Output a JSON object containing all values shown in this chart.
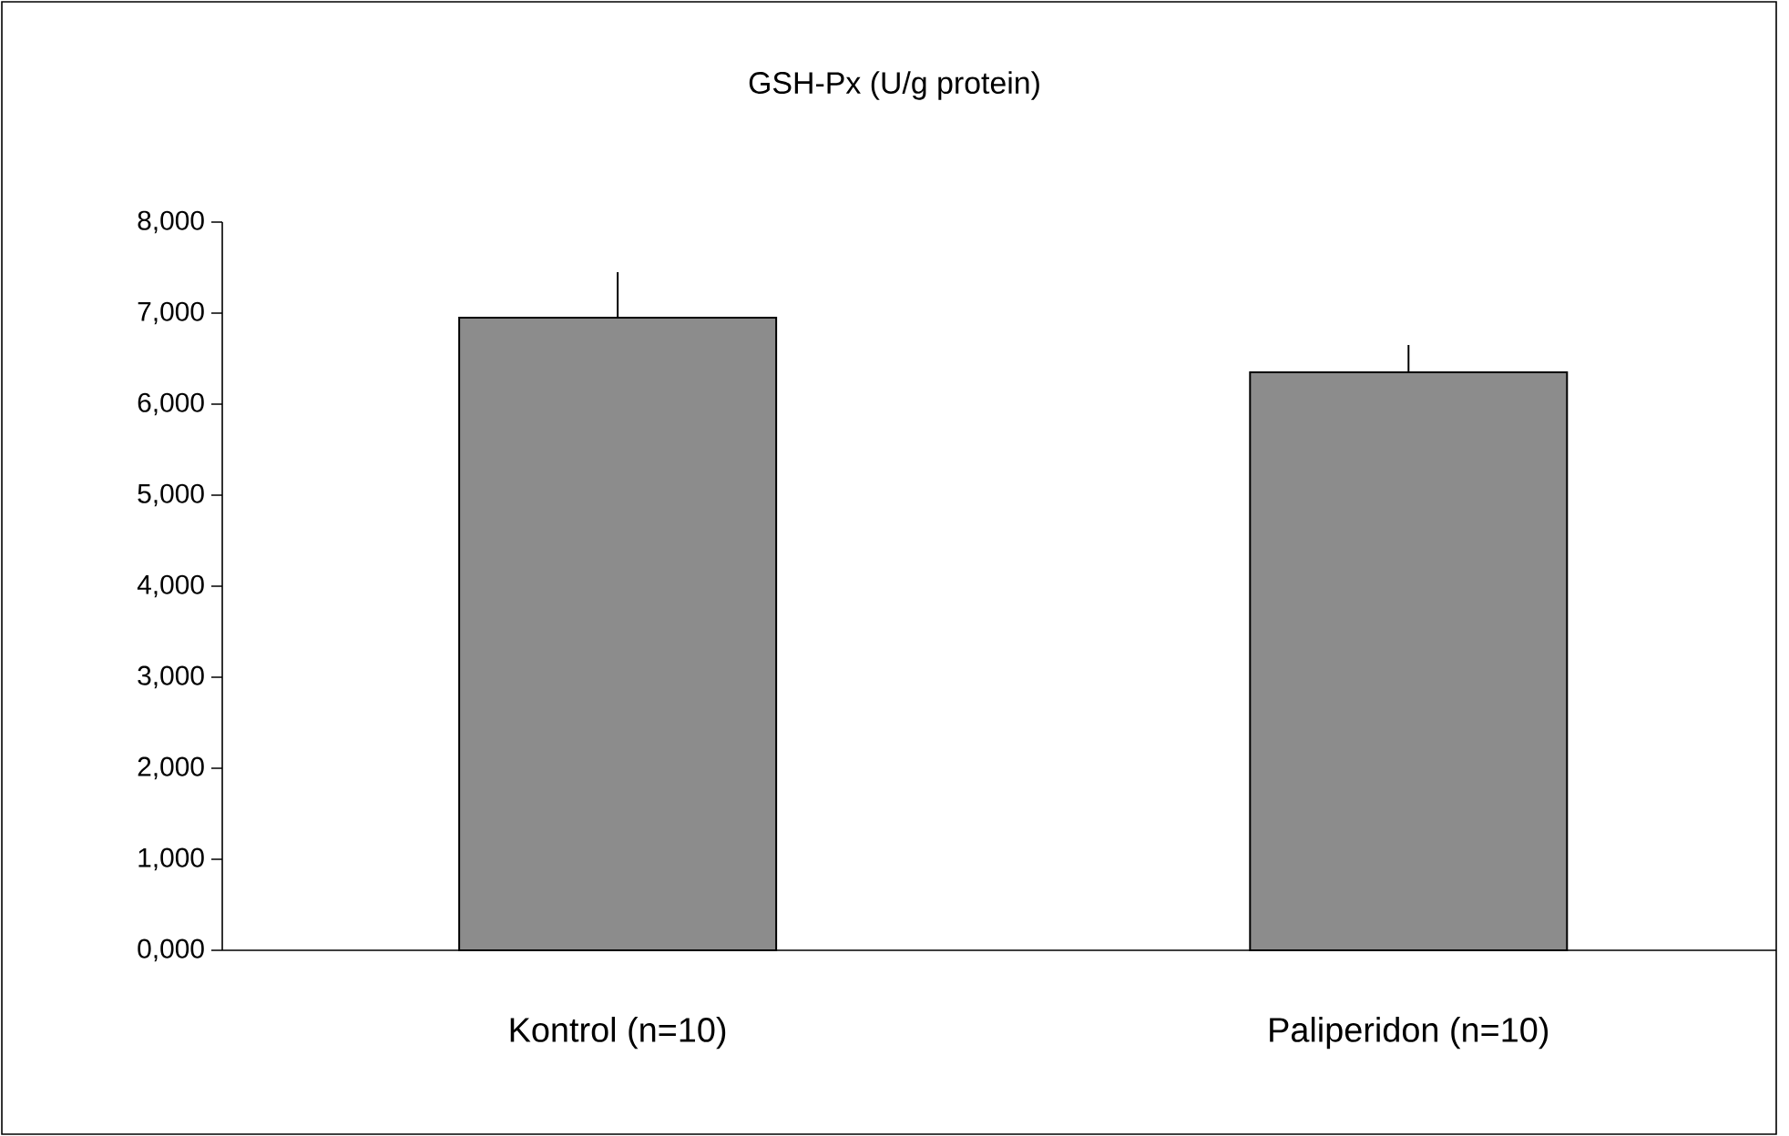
{
  "chart_data": {
    "type": "bar",
    "title": "GSH-Px (U/g protein)",
    "categories": [
      "Kontrol (n=10)",
      "Paliperidon (n=10)"
    ],
    "values": [
      6950,
      6350
    ],
    "errors": [
      [
        6950,
        7450
      ],
      [
        6350,
        6650
      ]
    ],
    "color": "#8c8c8c",
    "ylim": [
      0,
      8000
    ],
    "yticks": [
      {
        "value": 0,
        "label": "0,000"
      },
      {
        "value": 1000,
        "label": "1,000"
      },
      {
        "value": 2000,
        "label": "2,000"
      },
      {
        "value": 3000,
        "label": "3,000"
      },
      {
        "value": 4000,
        "label": "4,000"
      },
      {
        "value": 5000,
        "label": "5,000"
      },
      {
        "value": 6000,
        "label": "6,000"
      },
      {
        "value": 7000,
        "label": "7,000"
      },
      {
        "value": 8000,
        "label": "8,000"
      }
    ],
    "grid": false
  }
}
